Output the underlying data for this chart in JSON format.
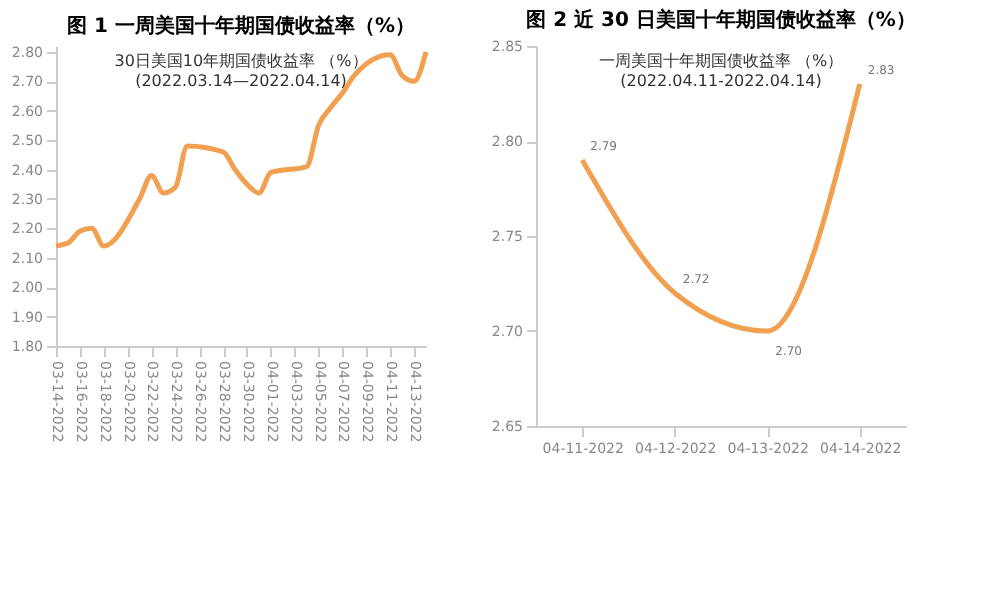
{
  "chart_data": [
    {
      "type": "line",
      "title": "图 1  一周美国十年期国债收益率（%）",
      "subtitle": "30日美国10年期国债收益率 （%）\n(2022.03.14—2022.04.14)",
      "x": [
        "2022-03-14",
        "2022-03-15",
        "2022-03-16",
        "2022-03-17",
        "2022-03-18",
        "2022-03-21",
        "2022-03-22",
        "2022-03-23",
        "2022-03-24",
        "2022-03-25",
        "2022-03-28",
        "2022-03-29",
        "2022-03-30",
        "2022-03-31",
        "2022-04-01",
        "2022-04-04",
        "2022-04-05",
        "2022-04-06",
        "2022-04-07",
        "2022-04-08",
        "2022-04-11",
        "2022-04-12",
        "2022-04-13",
        "2022-04-14"
      ],
      "series": [
        {
          "color": "#f0a050",
          "values": [
            2.14,
            2.15,
            2.19,
            2.2,
            2.14,
            2.3,
            2.38,
            2.32,
            2.34,
            2.48,
            2.46,
            2.4,
            2.35,
            2.32,
            2.39,
            2.41,
            2.55,
            2.61,
            2.66,
            2.72,
            2.79,
            2.72,
            2.7,
            2.8
          ]
        }
      ],
      "xlim": [
        "2022-03-14",
        "2022-04-14"
      ],
      "xticks": [
        {
          "value": "2022-03-14",
          "label": "03-14-2022"
        },
        {
          "value": "2022-03-16",
          "label": "03-16-2022"
        },
        {
          "value": "2022-03-18",
          "label": "03-18-2022"
        },
        {
          "value": "2022-03-20",
          "label": "03-20-2022"
        },
        {
          "value": "2022-03-22",
          "label": "03-22-2022"
        },
        {
          "value": "2022-03-24",
          "label": "03-24-2022"
        },
        {
          "value": "2022-03-26",
          "label": "03-26-2022"
        },
        {
          "value": "2022-03-28",
          "label": "03-28-2022"
        },
        {
          "value": "2022-03-30",
          "label": "03-30-2022"
        },
        {
          "value": "2022-04-01",
          "label": "04-01-2022"
        },
        {
          "value": "2022-04-03",
          "label": "04-03-2022"
        },
        {
          "value": "2022-04-05",
          "label": "04-05-2022"
        },
        {
          "value": "2022-04-07",
          "label": "04-07-2022"
        },
        {
          "value": "2022-04-09",
          "label": "04-09-2022"
        },
        {
          "value": "2022-04-11",
          "label": "04-11-2022"
        },
        {
          "value": "2022-04-13",
          "label": "04-13-2022"
        }
      ],
      "ylim": [
        1.8,
        2.82
      ],
      "yticks": [
        {
          "value": 1.8,
          "label": "1.80"
        },
        {
          "value": 1.9,
          "label": "1.90"
        },
        {
          "value": 2.0,
          "label": "2.00"
        },
        {
          "value": 2.1,
          "label": "2.10"
        },
        {
          "value": 2.2,
          "label": "2.20"
        },
        {
          "value": 2.3,
          "label": "2.30"
        },
        {
          "value": 2.4,
          "label": "2.40"
        },
        {
          "value": 2.5,
          "label": "2.50"
        },
        {
          "value": 2.6,
          "label": "2.60"
        },
        {
          "value": 2.7,
          "label": "2.70"
        },
        {
          "value": 2.8,
          "label": "2.80"
        }
      ],
      "grid": false,
      "legend": false,
      "marker": "none",
      "line_style": "solid"
    },
    {
      "type": "line",
      "title": "图 2  近 30 日美国十年期国债收益率（%）",
      "subtitle": "一周美国十年期国债收益率 （%）\n(2022.04.11-2022.04.14)",
      "categories": [
        "04-11-2022",
        "04-12-2022",
        "04-13-2022",
        "04-14-2022"
      ],
      "series": [
        {
          "color": "#f0a050",
          "values": [
            2.79,
            2.72,
            2.7,
            2.83
          ]
        }
      ],
      "ylim": [
        2.65,
        2.85
      ],
      "yticks": [
        {
          "value": 2.65,
          "label": "2.65"
        },
        {
          "value": 2.7,
          "label": "2.70"
        },
        {
          "value": 2.75,
          "label": "2.75"
        },
        {
          "value": 2.8,
          "label": "2.80"
        },
        {
          "value": 2.85,
          "label": "2.85"
        }
      ],
      "value_labels": [
        "2.79",
        "2.72",
        "2.70",
        "2.83"
      ],
      "grid": false,
      "legend": false,
      "marker": "none",
      "line_style": "solid"
    }
  ]
}
